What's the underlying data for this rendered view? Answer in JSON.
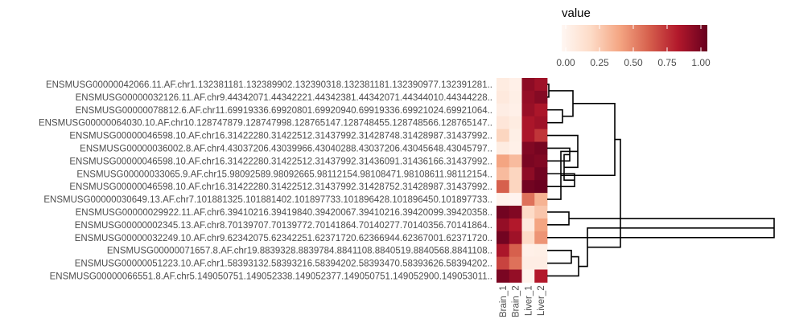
{
  "chart_data": {
    "type": "heatmap",
    "title": "",
    "xlabel": "",
    "ylabel": "",
    "columns": [
      "Brain_1",
      "Brain_2",
      "Liver_1",
      "Liver_2"
    ],
    "rows": [
      "ENSMUSG00000042066.11.AF.chr1.132381181.132389902.132390318.132381181.132390977.132391281..",
      "ENSMUSG00000032126.11.AF.chr9.44342071.44342221.44342381.44342071.44344010.44344228..",
      "ENSMUSG00000078812.6.AF.chr11.69919336.69920801.69920940.69919336.69921024.69921064..",
      "ENSMUSG00000064030.10.AF.chr10.128747879.128747998.128765147.128748455.128748566.128765147..",
      "ENSMUSG00000046598.10.AF.chr16.31422280.31422512.31437992.31428748.31428987.31437992..",
      "ENSMUSG00000036002.8.AF.chr4.43037206.43039966.43040288.43037206.43045648.43045797..",
      "ENSMUSG00000046598.10.AF.chr16.31422280.31422512.31437992.31436091.31436166.31437992..",
      "ENSMUSG00000033065.9.AF.chr15.98092589.98092665.98112154.98108471.98108611.98112154..",
      "ENSMUSG00000046598.10.AF.chr16.31422280.31422512.31437992.31428752.31428987.31437992..",
      "ENSMUSG00000030649.13.AF.chr7.101881325.101881402.101897733.101896428.101896450.101897733..",
      "ENSMUSG00000029922.11.AF.chr6.39410216.39419840.39420067.39410216.39420099.39420358..",
      "ENSMUSG00000002345.13.AF.chr8.70139707.70139772.70141864.70140277.70140356.70141864..",
      "ENSMUSG00000032249.10.AF.chr9.62342075.62342251.62371720.62366944.62367001.62371720..",
      "ENSMUSG00000071657.8.AF.chr19.8839328.8839784.8841108.8840519.8840568.8841108..",
      "ENSMUSG00000051223.10.AF.chr1.58393132.58393216.58394202.58393470.58393626.58394202..",
      "ENSMUSG00000066551.8.AF.chr5.149050751.149052338.149052377.149050751.149052900.149053011.."
    ],
    "values": [
      [
        0.08,
        0.05,
        0.9,
        0.85
      ],
      [
        0.1,
        0.06,
        0.88,
        0.92
      ],
      [
        0.07,
        0.05,
        0.87,
        0.82
      ],
      [
        0.12,
        0.08,
        0.82,
        0.85
      ],
      [
        0.22,
        0.06,
        0.82,
        0.72
      ],
      [
        0.08,
        0.05,
        0.93,
        0.96
      ],
      [
        0.4,
        0.32,
        0.95,
        0.93
      ],
      [
        0.32,
        0.22,
        0.9,
        0.97
      ],
      [
        0.6,
        0.22,
        0.97,
        0.99
      ],
      [
        0.03,
        0.02,
        0.55,
        0.35
      ],
      [
        0.97,
        0.93,
        0.2,
        0.28
      ],
      [
        0.88,
        0.8,
        0.1,
        0.4
      ],
      [
        0.97,
        0.85,
        0.2,
        0.45
      ],
      [
        0.82,
        0.6,
        0.05,
        0.06
      ],
      [
        0.68,
        0.55,
        0.07,
        0.07
      ],
      [
        0.95,
        0.88,
        0.03,
        0.8
      ]
    ],
    "color_scale": {
      "title": "value",
      "min": 0,
      "max": 1,
      "ticks": [
        "0.00",
        "0.25",
        "0.50",
        "0.75",
        "1.00"
      ],
      "colors": [
        "#fff7f3",
        "#fddbc7",
        "#f4a582",
        "#d6604d",
        "#b2182b",
        "#67001f"
      ]
    },
    "legend": "top-right",
    "dendrogram": "rows, right side"
  }
}
